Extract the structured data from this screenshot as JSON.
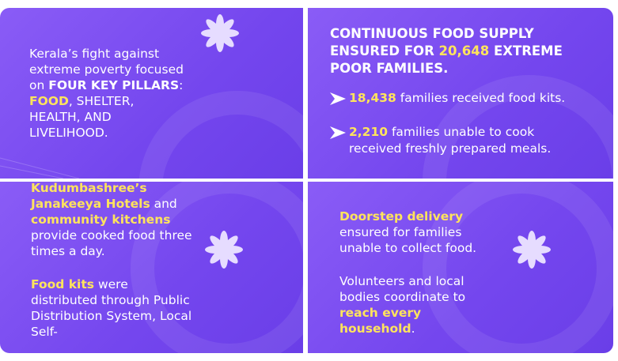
{
  "panels": [
    {
      "paragraphs": [
        [
          {
            "text": "Kerala’s fight against extreme poverty focused on ",
            "style": "plain"
          },
          {
            "text": "FOUR KEY PILLARS",
            "style": "bold"
          },
          {
            "text": ": ",
            "style": "plain"
          },
          {
            "text": "FOOD",
            "style": "yellow"
          },
          {
            "text": ", SHELTER, HEALTH, AND LIVELIHOOD.",
            "style": "plain"
          }
        ]
      ]
    },
    {
      "heading": [
        {
          "text": "CONTINUOUS FOOD SUPPLY ENSURED FOR ",
          "style": "bold"
        },
        {
          "text": "20,648",
          "style": "yellow"
        },
        {
          "text": " EXTREME POOR FAMILIES",
          "style": "bold"
        },
        {
          "text": ".",
          "style": "plain"
        }
      ],
      "bullets": [
        [
          {
            "text": "18,438",
            "style": "yellow"
          },
          {
            "text": " families received food kits.",
            "style": "plain"
          }
        ],
        [
          {
            "text": "2,210",
            "style": "yellow"
          },
          {
            "text": " families unable to cook received freshly prepared meals.",
            "style": "plain"
          }
        ]
      ]
    },
    {
      "paragraphs": [
        [
          {
            "text": "Kudumbashree’s Janakeeya Hotels",
            "style": "yellow"
          },
          {
            "text": " and ",
            "style": "plain"
          },
          {
            "text": "community kitchens",
            "style": "yellow"
          },
          {
            "text": " provide cooked food three times a day.",
            "style": "plain"
          }
        ],
        [
          {
            "text": "Food kits",
            "style": "yellow"
          },
          {
            "text": " were distributed through Public Distribution System, Local Self-",
            "style": "plain"
          }
        ]
      ]
    },
    {
      "paragraphs": [
        [
          {
            "text": "Doorstep delivery",
            "style": "yellow"
          },
          {
            "text": " ensured for families unable to collect food.",
            "style": "plain"
          }
        ],
        [
          {
            "text": "Volunteers and local bodies coordinate to ",
            "style": "plain"
          },
          {
            "text": "reach every household",
            "style": "yellow"
          },
          {
            "text": ".",
            "style": "plain"
          }
        ]
      ]
    }
  ]
}
